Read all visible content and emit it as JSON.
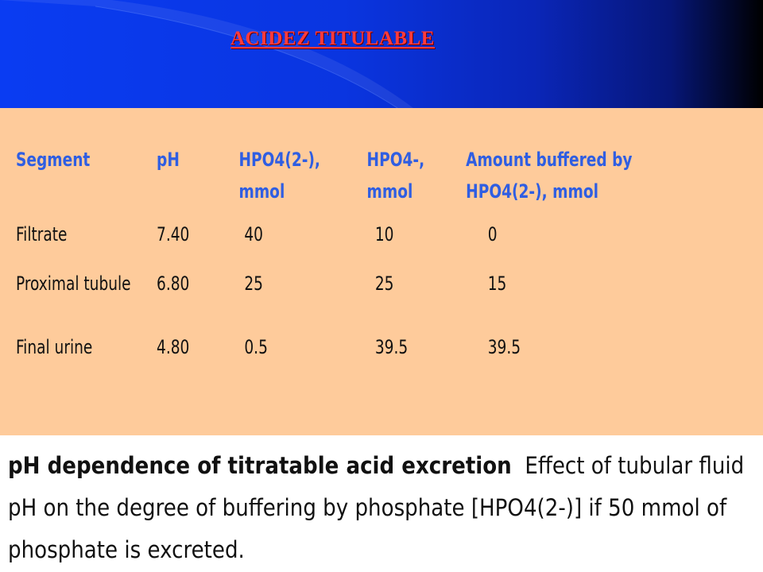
{
  "header": {
    "title": "ACIDEZ TITULABLE"
  },
  "table": {
    "columns": [
      [
        "Segment"
      ],
      [
        "pH"
      ],
      [
        "HPO4(2-),",
        "mmol"
      ],
      [
        "HPO4-,",
        "mmol"
      ],
      [
        "Amount buffered by",
        "HPO4(2-), mmol"
      ]
    ],
    "rows": [
      [
        "Filtrate",
        "7.40",
        "40",
        "10",
        "0"
      ],
      [
        "Proximal tubule",
        "6.80",
        "25",
        "25",
        "15"
      ],
      [
        "Final urine",
        "4.80",
        "0.5",
        "39.5",
        "39.5"
      ]
    ]
  },
  "caption": {
    "bold": "pH dependence of titratable acid excretion",
    "text": "Effect of tubular fluid pH on the degree of buffering by phosphate [HPO4(2-)] if 50 mmol of phosphate is excreted."
  },
  "colors": {
    "header_blue": "#0a3cf2",
    "title_red": "#ff3b3b",
    "panel_peach": "#fecb9b",
    "header_text_blue": "#2f5ee2"
  }
}
